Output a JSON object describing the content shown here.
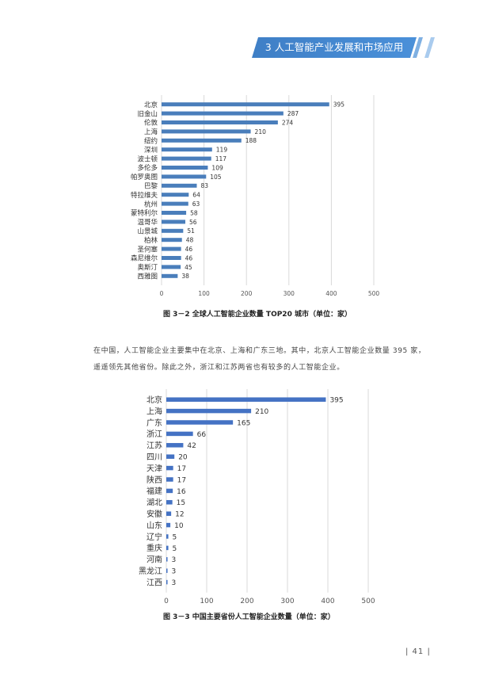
{
  "header": {
    "title": "3 人工智能产业发展和市场应用"
  },
  "charts": [
    {
      "type": "bar",
      "orientation": "horizontal",
      "caption": "图 3－2  全球人工智能企业数量 TOP20 城市（单位：家）",
      "categories": [
        "北京",
        "旧金山",
        "伦敦",
        "上海",
        "纽约",
        "深圳",
        "波士顿",
        "多伦多",
        "帕罗奥图",
        "巴黎",
        "特拉维夫",
        "杭州",
        "蒙特利尔",
        "温哥华",
        "山景城",
        "柏林",
        "圣何塞",
        "森尼维尔",
        "奥斯汀",
        "西雅图"
      ],
      "values": [
        395,
        287,
        274,
        210,
        188,
        119,
        117,
        109,
        105,
        83,
        64,
        63,
        58,
        56,
        51,
        48,
        46,
        46,
        45,
        38
      ],
      "xlim": [
        0,
        500
      ],
      "xticks": [
        0,
        100,
        200,
        300,
        400,
        500
      ],
      "grid": true,
      "color": "#4a7ebb"
    },
    {
      "type": "bar",
      "orientation": "horizontal",
      "caption": "图 3－3  中国主要省份人工智能企业数量（单位：家）",
      "categories": [
        "北京",
        "上海",
        "广东",
        "浙江",
        "江苏",
        "四川",
        "天津",
        "陕西",
        "福建",
        "湖北",
        "安徽",
        "山东",
        "辽宁",
        "重庆",
        "河南",
        "黑龙江",
        "江西"
      ],
      "values": [
        395,
        210,
        165,
        66,
        42,
        20,
        17,
        17,
        16,
        15,
        12,
        10,
        5,
        5,
        3,
        3,
        3
      ],
      "xlim": [
        0,
        500
      ],
      "xticks": [
        0,
        100,
        200,
        300,
        400,
        500
      ],
      "grid": true,
      "color": "#4472c4"
    }
  ],
  "paragraph": {
    "line1": "在中国，人工智能企业主要集中在北京、上海和广东三地。其中，北京人工智能企业数量 395 家，",
    "line2": "遥遥领先其他省份。除此之外，浙江和江苏两省也有较多的人工智能企业。"
  },
  "page_number": "| 41 |"
}
